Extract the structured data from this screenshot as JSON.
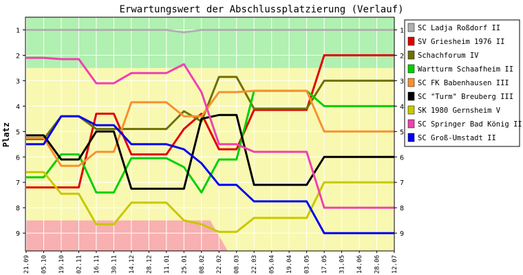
{
  "chart_data": {
    "type": "line",
    "title": "Erwartungswert der Abschlussplatzierung (Verlauf)",
    "ylabel": "Platz",
    "xlabel": "",
    "ylim": [
      0.5,
      9.7
    ],
    "y_inverted": true,
    "yticks": [
      1,
      2,
      3,
      4,
      5,
      6,
      7,
      8,
      9
    ],
    "legend_position": "right",
    "x": [
      "21.09",
      "05.10",
      "19.10",
      "02.11",
      "16.11",
      "30.11",
      "14.12",
      "28.12",
      "11.01",
      "25.01",
      "08.02",
      "22.02",
      "08.03",
      "22.03",
      "05.04",
      "19.04",
      "03.05",
      "17.05",
      "31.05",
      "14.06",
      "28.06",
      "12.07"
    ],
    "zones": [
      {
        "name": "promotion",
        "color": "#b0f0b0",
        "y_top": 0.5,
        "y_bottom": 2.5
      },
      {
        "name": "middle",
        "color": "#f8f8b0",
        "y_top": 2.5,
        "y_bottom": 9.7
      },
      {
        "name": "relegation",
        "color": "#f8b0b0",
        "from": [
          [
            0,
            8.5
          ],
          [
            10.5,
            8.5
          ],
          [
            11.5,
            9.7
          ],
          [
            0,
            9.7
          ]
        ]
      }
    ],
    "series": [
      {
        "name": "SC Ladja Roßdorf II",
        "color": "#b0b0b0",
        "values": [
          1,
          1,
          1,
          1,
          1,
          1,
          1,
          1,
          1,
          1.1,
          1,
          1,
          1,
          1,
          1,
          1,
          1,
          1,
          1,
          1,
          1,
          1
        ]
      },
      {
        "name": "SV Griesheim 1976 II",
        "color": "#e00000",
        "values": [
          7.2,
          7.2,
          7.2,
          7.2,
          4.3,
          4.3,
          5.9,
          5.9,
          5.9,
          4.9,
          4.3,
          5.7,
          5.7,
          4.15,
          4.15,
          4.15,
          4.15,
          2,
          2,
          2,
          2,
          2
        ]
      },
      {
        "name": "Schachforum IV",
        "color": "#707000",
        "values": [
          5.3,
          5.3,
          4.4,
          4.4,
          4.9,
          4.9,
          4.9,
          4.9,
          4.9,
          4.2,
          4.6,
          2.85,
          2.85,
          4.1,
          4.1,
          4.1,
          4.1,
          3,
          3,
          3,
          3,
          3
        ]
      },
      {
        "name": "Wartturm Schaafheim II",
        "color": "#00d000",
        "values": [
          6.8,
          6.8,
          5.9,
          5.9,
          7.4,
          7.4,
          6.05,
          6.05,
          6.05,
          6.4,
          7.4,
          6.1,
          6.1,
          3.4,
          3.4,
          3.4,
          3.4,
          4,
          4,
          4,
          4,
          4
        ]
      },
      {
        "name": "SC FK Babenhausen III",
        "color": "#f89030",
        "values": [
          5.25,
          5.25,
          6.35,
          6.35,
          5.8,
          5.8,
          3.85,
          3.85,
          3.85,
          4.4,
          4.4,
          3.45,
          3.45,
          3.4,
          3.4,
          3.4,
          3.4,
          5,
          5,
          5,
          5,
          5
        ]
      },
      {
        "name": "SC \"Turm\" Breuberg III",
        "color": "#000000",
        "values": [
          5.15,
          5.15,
          6.1,
          6.1,
          5.0,
          5.0,
          7.25,
          7.25,
          7.25,
          7.25,
          4.5,
          4.35,
          4.35,
          7.1,
          7.1,
          7.1,
          7.1,
          6,
          6,
          6,
          6,
          6
        ]
      },
      {
        "name": "SK 1980 Gernsheim V",
        "color": "#c8c800",
        "values": [
          6.6,
          6.6,
          7.45,
          7.45,
          8.65,
          8.65,
          7.8,
          7.8,
          7.8,
          8.5,
          8.65,
          8.95,
          8.95,
          8.4,
          8.4,
          8.4,
          8.4,
          7,
          7,
          7,
          7,
          7
        ]
      },
      {
        "name": "SC Springer Bad König II",
        "color": "#f040b0",
        "values": [
          2.1,
          2.1,
          2.15,
          2.15,
          3.1,
          3.1,
          2.7,
          2.7,
          2.7,
          2.35,
          3.45,
          5.5,
          5.5,
          5.8,
          5.8,
          5.8,
          5.8,
          8,
          8,
          8,
          8,
          8
        ]
      },
      {
        "name": "SC Groß-Umstadt II",
        "color": "#0000f0",
        "values": [
          5.5,
          5.5,
          4.4,
          4.4,
          4.75,
          4.75,
          5.5,
          5.5,
          5.5,
          5.7,
          6.25,
          7.1,
          7.1,
          7.75,
          7.75,
          7.75,
          7.75,
          9,
          9,
          9,
          9,
          9
        ]
      }
    ]
  }
}
